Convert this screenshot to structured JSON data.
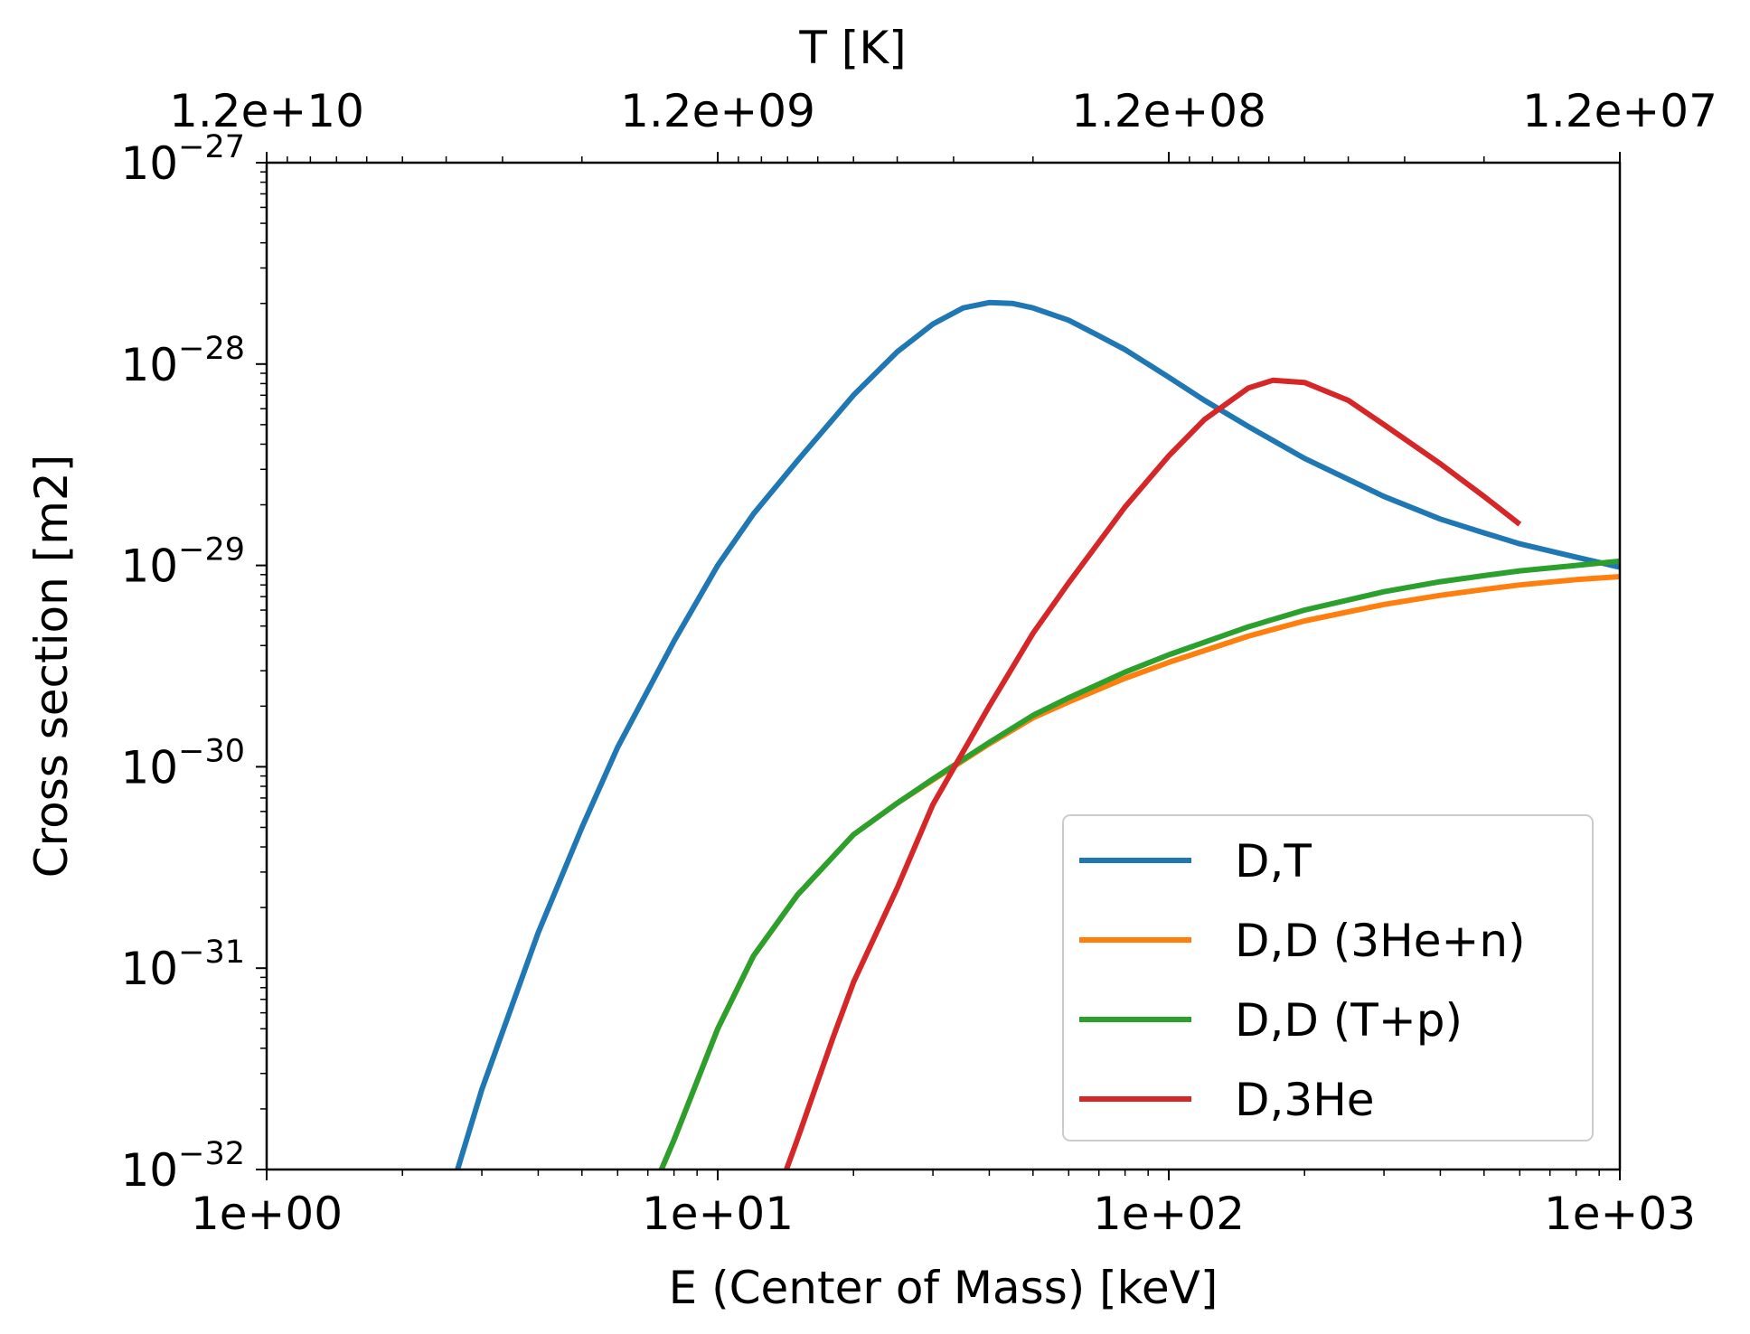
{
  "chart_data": {
    "type": "line",
    "xlabel": "E (Center of Mass) [keV]",
    "ylabel": "Cross section [m2]",
    "top_xlabel": "T [K]",
    "xscale": "log",
    "yscale": "log",
    "xlim": [
      1,
      1000
    ],
    "ylim": [
      1e-32,
      1e-27
    ],
    "grid": false,
    "legend_position": "lower right",
    "x_ticks": [
      {
        "value": 1,
        "label": "1e+00"
      },
      {
        "value": 10,
        "label": "1e+01"
      },
      {
        "value": 100,
        "label": "1e+02"
      },
      {
        "value": 1000,
        "label": "1e+03"
      }
    ],
    "top_x_ticks": [
      {
        "value": 12000000000.0,
        "label": "1.2e+10"
      },
      {
        "value": 1200000000.0,
        "label": "1.2e+09"
      },
      {
        "value": 120000000.0,
        "label": "1.2e+08"
      },
      {
        "value": 12000000.0,
        "label": "1.2e+07"
      }
    ],
    "top_axis_kelvin_per_kev": 11604500,
    "y_ticks": [
      {
        "value": 1e-32,
        "base": "10",
        "exp": "−32"
      },
      {
        "value": 1e-31,
        "base": "10",
        "exp": "−31"
      },
      {
        "value": 1e-30,
        "base": "10",
        "exp": "−30"
      },
      {
        "value": 1e-29,
        "base": "10",
        "exp": "−29"
      },
      {
        "value": 1e-28,
        "base": "10",
        "exp": "−28"
      },
      {
        "value": 1e-27,
        "base": "10",
        "exp": "−27"
      }
    ],
    "series": [
      {
        "name": "D,T",
        "color": "#1f77b4",
        "x": [
          2.65,
          3,
          4,
          5,
          6,
          8,
          10,
          12,
          15,
          20,
          25,
          30,
          35,
          40,
          45,
          50,
          60,
          70,
          80,
          100,
          120,
          150,
          200,
          300,
          400,
          500,
          600,
          800,
          1000
        ],
        "y": [
          1e-32,
          2.5e-32,
          1.5e-31,
          5e-31,
          1.25e-30,
          4.2e-30,
          1e-29,
          1.8e-29,
          3.3e-29,
          7e-29,
          1.15e-28,
          1.58e-28,
          1.9e-28,
          2.02e-28,
          2e-28,
          1.9e-28,
          1.65e-28,
          1.38e-28,
          1.18e-28,
          8.6e-29,
          6.6e-29,
          4.9e-29,
          3.4e-29,
          2.2e-29,
          1.7e-29,
          1.45e-29,
          1.28e-29,
          1.1e-29,
          9.8e-30
        ]
      },
      {
        "name": "D,D (3He+n)",
        "color": "#ff7f0e",
        "x": [
          7.5,
          8,
          10,
          12,
          15,
          20,
          25,
          30,
          40,
          50,
          60,
          80,
          100,
          150,
          200,
          300,
          400,
          500,
          600,
          800,
          1000
        ],
        "y": [
          1e-32,
          1.4e-32,
          5e-32,
          1.15e-31,
          2.3e-31,
          4.6e-31,
          6.6e-31,
          8.6e-31,
          1.3e-30,
          1.75e-30,
          2.1e-30,
          2.75e-30,
          3.3e-30,
          4.45e-30,
          5.3e-30,
          6.4e-30,
          7.1e-30,
          7.6e-30,
          8e-30,
          8.5e-30,
          8.8e-30
        ]
      },
      {
        "name": "D,D (T+p)",
        "color": "#2ca02c",
        "x": [
          7.5,
          8,
          10,
          12,
          15,
          20,
          25,
          30,
          40,
          50,
          60,
          80,
          100,
          150,
          200,
          300,
          400,
          500,
          600,
          800,
          1000
        ],
        "y": [
          1e-32,
          1.4e-32,
          5e-32,
          1.15e-31,
          2.3e-31,
          4.6e-31,
          6.6e-31,
          8.7e-31,
          1.32e-30,
          1.8e-30,
          2.2e-30,
          2.95e-30,
          3.6e-30,
          4.95e-30,
          6e-30,
          7.4e-30,
          8.3e-30,
          8.9e-30,
          9.4e-30,
          1e-29,
          1.05e-29
        ]
      },
      {
        "name": "D,3He",
        "color": "#d62728",
        "x": [
          14.2,
          15,
          18,
          20,
          25,
          30,
          40,
          50,
          60,
          80,
          100,
          120,
          150,
          170,
          200,
          250,
          300,
          400,
          500,
          600
        ],
        "y": [
          1e-32,
          1.4e-32,
          4.5e-32,
          8.5e-32,
          2.5e-31,
          6.5e-31,
          2e-30,
          4.6e-30,
          8.2e-30,
          1.95e-29,
          3.5e-29,
          5.3e-29,
          7.6e-29,
          8.3e-29,
          8.1e-29,
          6.6e-29,
          5e-29,
          3.2e-29,
          2.2e-29,
          1.6e-29
        ]
      }
    ]
  }
}
